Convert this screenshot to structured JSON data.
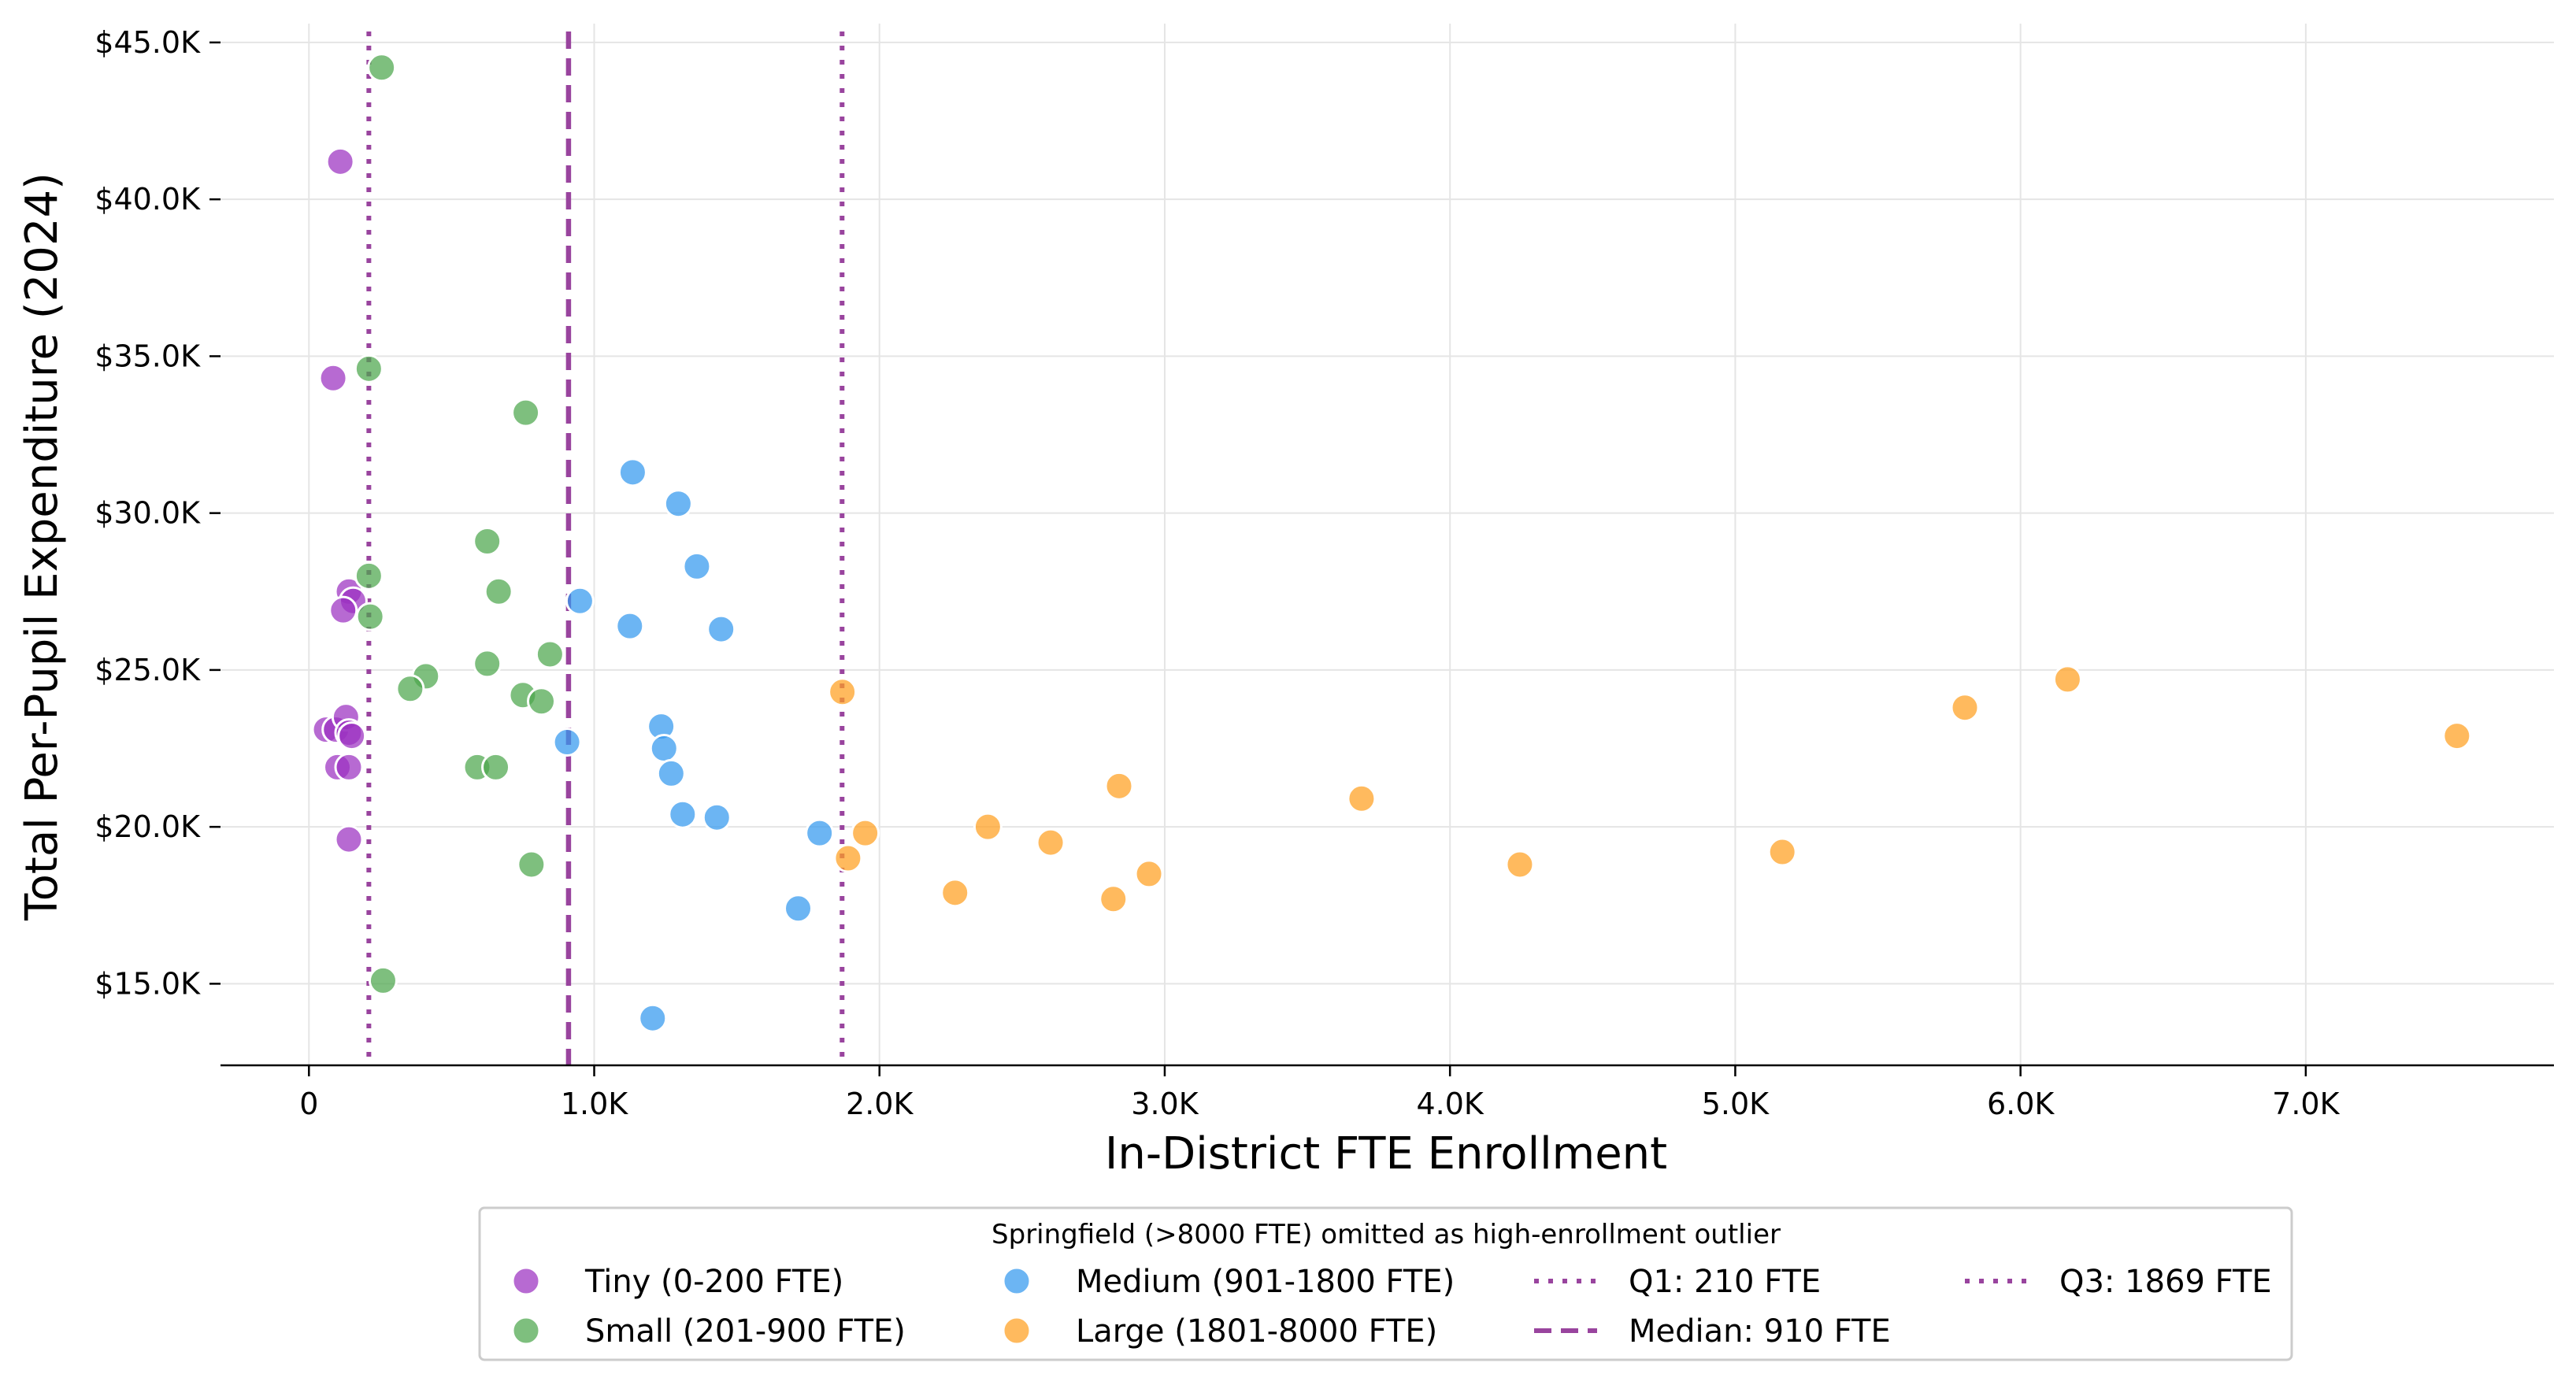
{
  "chart_data": {
    "type": "scatter",
    "xlabel": "In-District FTE Enrollment",
    "ylabel": "Total Per-Pupil Expenditure (2024)",
    "xlim": [
      -310,
      7870
    ],
    "ylim": [
      12400,
      45600
    ],
    "x_ticks": [
      {
        "value": 0,
        "label": "0"
      },
      {
        "value": 1000,
        "label": "1.0K"
      },
      {
        "value": 2000,
        "label": "2.0K"
      },
      {
        "value": 3000,
        "label": "3.0K"
      },
      {
        "value": 4000,
        "label": "4.0K"
      },
      {
        "value": 5000,
        "label": "5.0K"
      },
      {
        "value": 6000,
        "label": "6.0K"
      },
      {
        "value": 7000,
        "label": "7.0K"
      }
    ],
    "y_ticks": [
      {
        "value": 15000,
        "label": "$15.0K"
      },
      {
        "value": 20000,
        "label": "$20.0K"
      },
      {
        "value": 25000,
        "label": "$25.0K"
      },
      {
        "value": 30000,
        "label": "$30.0K"
      },
      {
        "value": 35000,
        "label": "$35.0K"
      },
      {
        "value": 40000,
        "label": "$40.0K"
      },
      {
        "value": 45000,
        "label": "$45.0K"
      }
    ],
    "grid": true,
    "series": [
      {
        "name": "Tiny (0-200 FTE)",
        "color": "#9b30c0",
        "points": [
          [
            110,
            41200
          ],
          [
            85,
            34300
          ],
          [
            140,
            27500
          ],
          [
            155,
            27200
          ],
          [
            120,
            26900
          ],
          [
            60,
            23100
          ],
          [
            95,
            23100
          ],
          [
            130,
            23500
          ],
          [
            140,
            23000
          ],
          [
            150,
            22900
          ],
          [
            100,
            21900
          ],
          [
            140,
            21900
          ],
          [
            140,
            19600
          ]
        ]
      },
      {
        "name": "Small (201-900 FTE)",
        "color": "#4ca64c",
        "points": [
          [
            255,
            44200
          ],
          [
            210,
            34600
          ],
          [
            760,
            33200
          ],
          [
            625,
            29100
          ],
          [
            210,
            28000
          ],
          [
            665,
            27500
          ],
          [
            215,
            26700
          ],
          [
            410,
            24800
          ],
          [
            355,
            24400
          ],
          [
            625,
            25200
          ],
          [
            845,
            25500
          ],
          [
            750,
            24200
          ],
          [
            815,
            24000
          ],
          [
            590,
            21900
          ],
          [
            655,
            21900
          ],
          [
            780,
            18800
          ],
          [
            260,
            15100
          ]
        ]
      },
      {
        "name": "Medium (901-1800 FTE)",
        "color": "#3399ee",
        "points": [
          [
            1135,
            31300
          ],
          [
            1295,
            30300
          ],
          [
            1360,
            28300
          ],
          [
            950,
            27200
          ],
          [
            1125,
            26400
          ],
          [
            1445,
            26300
          ],
          [
            1235,
            23200
          ],
          [
            905,
            22700
          ],
          [
            1245,
            22500
          ],
          [
            1270,
            21700
          ],
          [
            1310,
            20400
          ],
          [
            1430,
            20300
          ],
          [
            1790,
            19800
          ],
          [
            1715,
            17400
          ],
          [
            1205,
            13900
          ]
        ]
      },
      {
        "name": "Large (1801-8000 FTE)",
        "color": "#ffa020",
        "points": [
          [
            1870,
            24300
          ],
          [
            1890,
            19000
          ],
          [
            1950,
            19800
          ],
          [
            2265,
            17900
          ],
          [
            2380,
            20000
          ],
          [
            2600,
            19500
          ],
          [
            2820,
            17700
          ],
          [
            2840,
            21300
          ],
          [
            2945,
            18500
          ],
          [
            3690,
            20900
          ],
          [
            4245,
            18800
          ],
          [
            5165,
            19200
          ],
          [
            5805,
            23800
          ],
          [
            6165,
            24700
          ],
          [
            7530,
            22900
          ]
        ]
      }
    ],
    "reference_lines": [
      {
        "name": "Q1: 210 FTE",
        "value": 210,
        "style": "dotted",
        "color": "#99449e"
      },
      {
        "name": "Median: 910 FTE",
        "value": 910,
        "style": "dashed",
        "color": "#99449e"
      },
      {
        "name": "Q3: 1869 FTE",
        "value": 1869,
        "style": "dotted",
        "color": "#99449e"
      }
    ],
    "legend": {
      "title": "Springfield (>8000 FTE) omitted as high-enrollment outlier",
      "placement": "bottom-center"
    }
  }
}
